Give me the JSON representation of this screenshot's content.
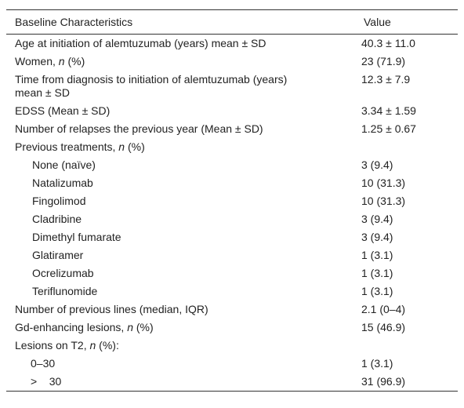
{
  "table": {
    "header": [
      "Baseline Characteristics",
      "Value"
    ],
    "rows": [
      {
        "label": [
          "Age at initiation of alemtuzumab (years) mean ± SD"
        ],
        "value": "40.3 ± 11.0"
      },
      {
        "label": [
          "Women, ",
          "n",
          " (%)"
        ],
        "value": "23 (71.9)"
      },
      {
        "label": [
          "Time from diagnosis to initiation of alemtuzumab (years)",
          "mean ± SD"
        ],
        "value": "12.3 ± 7.9"
      },
      {
        "label": [
          "EDSS (Mean ± SD)"
        ],
        "value": "3.34 ± 1.59"
      },
      {
        "label": [
          "Number of relapses the previous year (Mean ± SD)"
        ],
        "value": "1.25 ± 0.67"
      },
      {
        "label": [
          "Previous treatments, ",
          "n",
          " (%)"
        ]
      },
      {
        "label": [
          "None (naïve)"
        ],
        "value": "3 (9.4)"
      },
      {
        "label": [
          "Natalizumab"
        ],
        "value": "10 (31.3)"
      },
      {
        "label": [
          "Fingolimod"
        ],
        "value": "10 (31.3)"
      },
      {
        "label": [
          "Cladribine"
        ],
        "value": "3 (9.4)"
      },
      {
        "label": [
          "Dimethyl fumarate"
        ],
        "value": "3 (9.4)"
      },
      {
        "label": [
          "Glatiramer"
        ],
        "value": "1 (3.1)"
      },
      {
        "label": [
          "Ocrelizumab"
        ],
        "value": "1 (3.1)"
      },
      {
        "label": [
          "Teriflunomide"
        ],
        "value": "1 (3.1)"
      },
      {
        "label": [
          "Number of previous lines (median, IQR)"
        ],
        "value": "2.1 (0–4)"
      },
      {
        "label": [
          "Gd-enhancing lesions, ",
          "n",
          " (%)"
        ],
        "value": "15 (46.9)"
      },
      {
        "label": [
          "Lesions on T2, ",
          "n",
          " (%):"
        ]
      },
      {
        "label": [
          "0–30"
        ],
        "value": "1 (3.1)"
      },
      {
        "label": [
          ">    30"
        ],
        "value": "31 (96.9)"
      }
    ]
  }
}
